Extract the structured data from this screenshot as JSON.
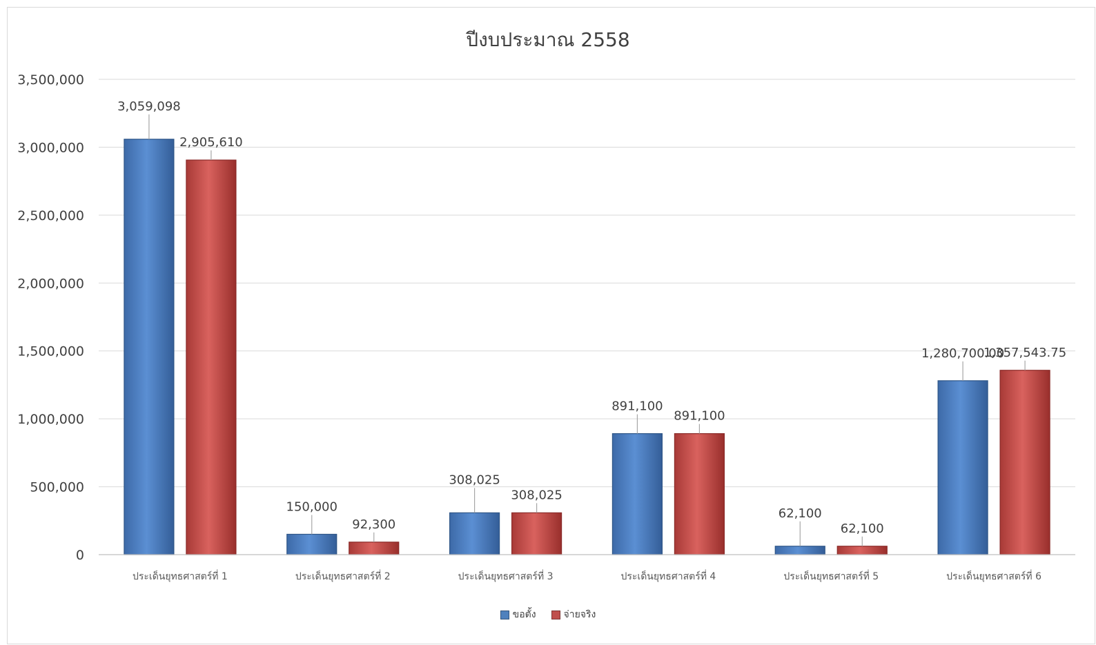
{
  "chart_data": {
    "type": "bar",
    "title": "ปีงบประมาณ 2558",
    "categories": [
      "ประเด็นยุทธศาสตร์ที่ 1",
      "ประเด็นยุทธศาสตร์ที่ 2",
      "ประเด็นยุทธศาสตร์ที่ 3",
      "ประเด็นยุทธศาสตร์ที่ 4",
      "ประเด็นยุทธศาสตร์ที่ 5",
      "ประเด็นยุทธศาสตร์ที่ 6"
    ],
    "series": [
      {
        "name": "ขอตั้ง",
        "values": [
          3059098,
          150000,
          308025,
          891100,
          62100,
          1280700.0
        ],
        "labels": [
          "3,059,098",
          "150,000",
          "308,025",
          "891,100",
          "62,100",
          "1,280,700.00"
        ],
        "color": "#4f81bd"
      },
      {
        "name": "จ่ายจริง",
        "values": [
          2905610,
          92300,
          308025,
          891100,
          62100,
          1357543.75
        ],
        "labels": [
          "2,905,610",
          "92,300",
          "308,025",
          "891,100",
          "62,100",
          "1,357,543.75"
        ],
        "color": "#c0504d"
      }
    ],
    "y_ticks": [
      "0",
      "500,000",
      "1,000,000",
      "1,500,000",
      "2,000,000",
      "2,500,000",
      "3,000,000",
      "3,500,000"
    ],
    "ylim": [
      0,
      3500000
    ],
    "grid": true,
    "legend_position": "bottom"
  }
}
